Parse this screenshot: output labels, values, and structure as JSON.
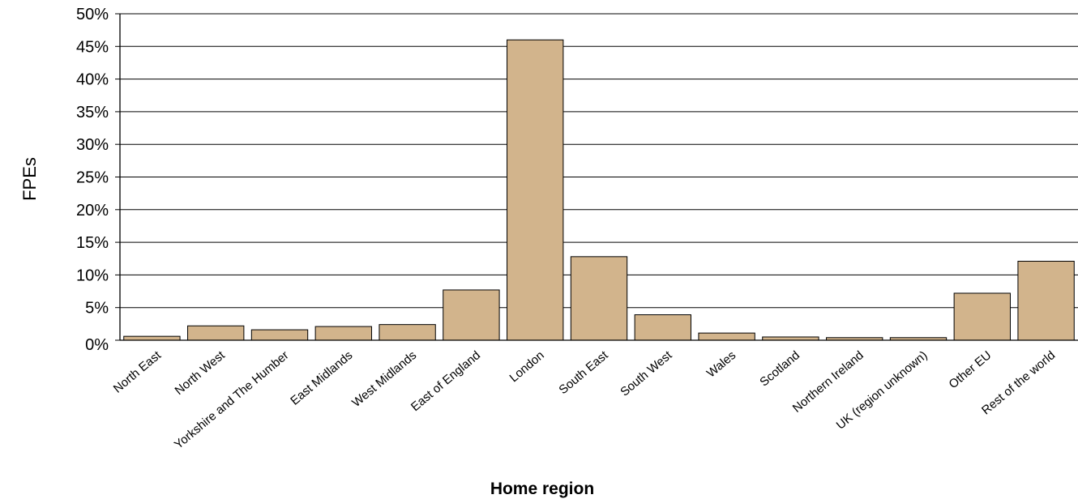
{
  "chart_data": {
    "type": "bar",
    "xlabel": "Home region",
    "ylabel": "FPEs",
    "ylim": [
      0,
      50
    ],
    "yticks": [
      "0%",
      "5%",
      "10%",
      "15%",
      "20%",
      "25%",
      "30%",
      "35%",
      "40%",
      "45%",
      "50%"
    ],
    "grid": true,
    "categories": [
      "North East",
      "North West",
      "Yorkshire and The Humber",
      "East Midlands",
      "West Midlands",
      "East of England",
      "London",
      "South East",
      "South West",
      "Wales",
      "Scotland",
      "Northern Ireland",
      "UK (region unknown)",
      "Other EU",
      "Rest of the world"
    ],
    "values": [
      0.6,
      2.2,
      1.6,
      2.1,
      2.4,
      7.7,
      46.0,
      12.8,
      3.9,
      1.1,
      0.5,
      0.4,
      0.4,
      7.2,
      12.1
    ],
    "colors": {
      "bar": "#d2b48c",
      "bar_stroke": "#000000",
      "grid": "#000000"
    }
  }
}
